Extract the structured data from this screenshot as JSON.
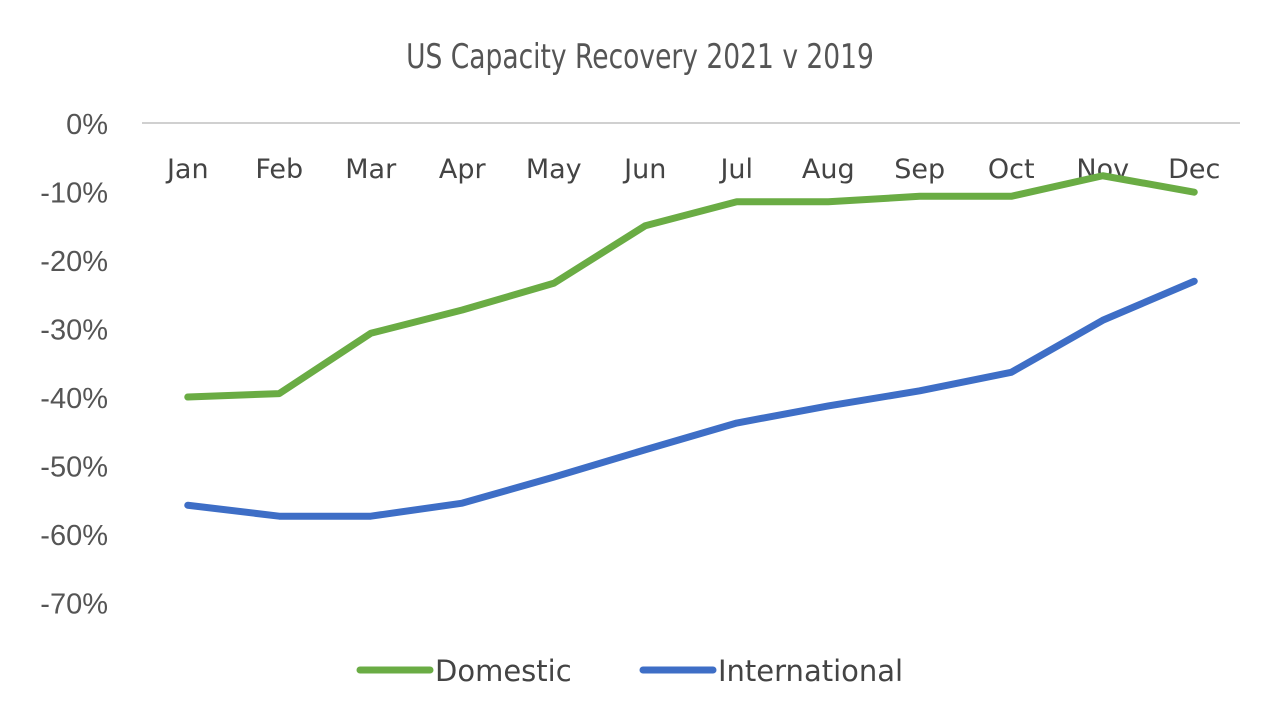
{
  "chart_data": {
    "type": "line",
    "title": "US Capacity Recovery 2021 v 2019",
    "xlabel": "",
    "ylabel": "",
    "categories": [
      "Jan",
      "Feb",
      "Mar",
      "Apr",
      "May",
      "Jun",
      "Jul",
      "Aug",
      "Sep",
      "Oct",
      "Nov",
      "Dec"
    ],
    "ylim": [
      -70,
      0
    ],
    "yticks": [
      0,
      -10,
      -20,
      -30,
      -40,
      -50,
      -60,
      -70
    ],
    "ytick_labels": [
      "0%",
      "-10%",
      "-20%",
      "-30%",
      "-40%",
      "-50%",
      "-60%",
      "-70%"
    ],
    "grid": false,
    "zero_line": true,
    "legend_position": "bottom",
    "series": [
      {
        "name": "Domestic",
        "color": "#6aac44",
        "values": [
          -40.0,
          -39.5,
          -30.7,
          -27.3,
          -23.4,
          -15.0,
          -11.5,
          -11.5,
          -10.7,
          -10.7,
          -7.7,
          -10.1
        ]
      },
      {
        "name": "International",
        "color": "#3e6ec6",
        "values": [
          -55.8,
          -57.4,
          -57.4,
          -55.5,
          -51.7,
          -47.7,
          -43.8,
          -41.3,
          -39.1,
          -36.4,
          -28.8,
          -23.1
        ]
      }
    ]
  }
}
